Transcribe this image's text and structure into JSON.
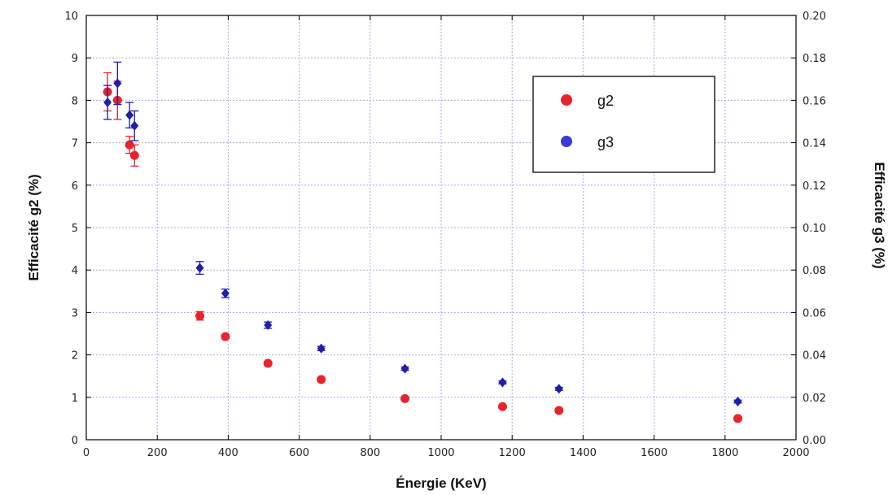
{
  "chart_data": {
    "type": "scatter",
    "xlabel": "Énergie (KeV)",
    "ylabel_left": "Efficacité g2 (%)",
    "ylabel_right": "Efficacité g3 (%)",
    "xlim": [
      0,
      2000
    ],
    "ylim_left": [
      0,
      10
    ],
    "ylim_right": [
      0.0,
      0.2
    ],
    "x_ticks": [
      "0",
      "200",
      "400",
      "600",
      "800",
      "1000",
      "1200",
      "1400",
      "1600",
      "1800",
      "2000"
    ],
    "y_ticks_left": [
      "0",
      "1",
      "2",
      "3",
      "4",
      "5",
      "6",
      "7",
      "8",
      "9",
      "10"
    ],
    "y_ticks_right": [
      "0.00",
      "0.02",
      "0.04",
      "0.06",
      "0.08",
      "0.10",
      "0.12",
      "0.14",
      "0.16",
      "0.18",
      "0.20"
    ],
    "grid": true,
    "legend_position": "top-right",
    "series": [
      {
        "name": "g2",
        "axis": "left",
        "color": "#e8242b",
        "points": [
          {
            "x": 60,
            "y": 8.2,
            "err": 0.45
          },
          {
            "x": 88,
            "y": 8.0,
            "err": 0.45
          },
          {
            "x": 122,
            "y": 6.95,
            "err": 0.2
          },
          {
            "x": 136,
            "y": 6.7,
            "err": 0.25
          },
          {
            "x": 320,
            "y": 2.92,
            "err": 0.1
          },
          {
            "x": 392,
            "y": 2.43,
            "err": 0.05
          },
          {
            "x": 512,
            "y": 1.8,
            "err": 0.04
          },
          {
            "x": 662,
            "y": 1.42,
            "err": 0.04
          },
          {
            "x": 898,
            "y": 0.97,
            "err": 0.03
          },
          {
            "x": 1173,
            "y": 0.78,
            "err": 0.03
          },
          {
            "x": 1332,
            "y": 0.69,
            "err": 0.03
          },
          {
            "x": 1836,
            "y": 0.5,
            "err": 0.03
          }
        ]
      },
      {
        "name": "g3",
        "axis": "right",
        "color": "#1f1fa8",
        "points": [
          {
            "x": 60,
            "y": 0.159,
            "err": 0.008
          },
          {
            "x": 88,
            "y": 0.168,
            "err": 0.01
          },
          {
            "x": 122,
            "y": 0.153,
            "err": 0.006
          },
          {
            "x": 136,
            "y": 0.148,
            "err": 0.007
          },
          {
            "x": 320,
            "y": 0.081,
            "err": 0.003
          },
          {
            "x": 392,
            "y": 0.069,
            "err": 0.002
          },
          {
            "x": 512,
            "y": 0.054,
            "err": 0.0015
          },
          {
            "x": 662,
            "y": 0.043,
            "err": 0.001
          },
          {
            "x": 898,
            "y": 0.0335,
            "err": 0.0008
          },
          {
            "x": 1173,
            "y": 0.027,
            "err": 0.0007
          },
          {
            "x": 1332,
            "y": 0.024,
            "err": 0.0007
          },
          {
            "x": 1836,
            "y": 0.018,
            "err": 0.0007
          }
        ]
      }
    ]
  },
  "legend": {
    "items": [
      {
        "label": "g2",
        "color": "#e8242b"
      },
      {
        "label": "g3",
        "color": "#3a3ad6"
      }
    ]
  }
}
